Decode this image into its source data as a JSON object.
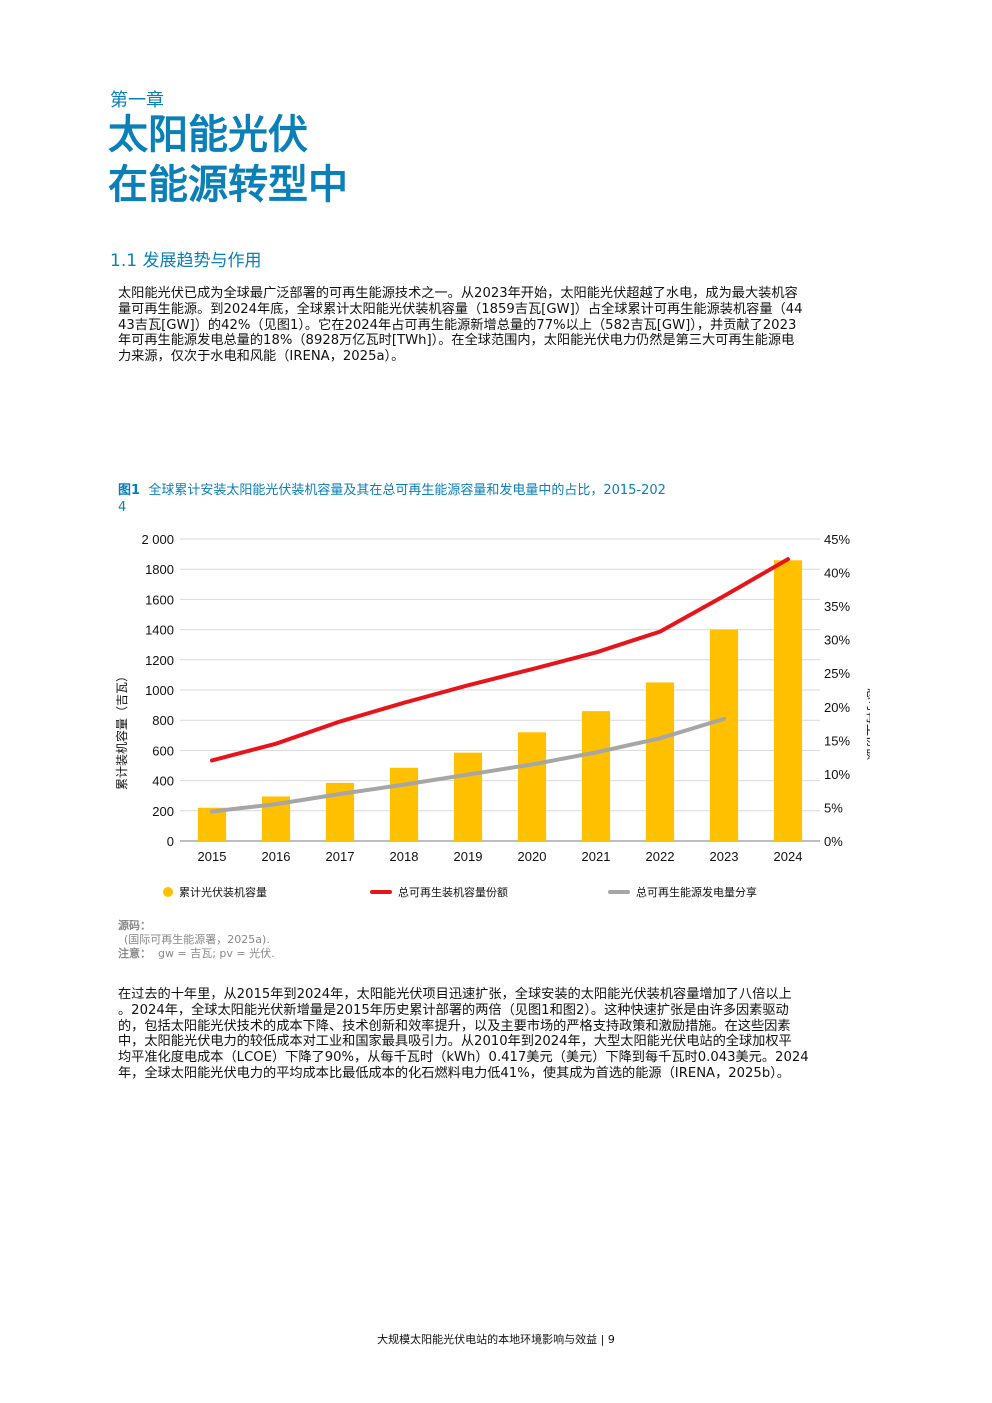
{
  "header": {
    "chapter": "第一章",
    "title_line1": "太阳能光伏",
    "title_line2": "在能源转型中"
  },
  "section_title": "1.1 发展趋势与作用",
  "paragraph1": [
    "太阳能光伏已成为全球最广泛部署的可再生能源技术之一。从2023年开始，太阳能光伏超越了水电，成为最大装机容",
    "量可再生能源。到2024年底，全球累计太阳能光伏装机容量（1859吉瓦[GW]）占全球累计可再生能源装机容量（44",
    "43吉瓦[GW]）的42%（见图1）。它在2024年占可再生能源新增总量的77%以上（582吉瓦[GW]），并贡献了2023",
    "年可再生能源发电总量的18%（8928万亿瓦时[TWh]）。在全球范围内，太阳能光伏电力仍然是第三大可再生能源电",
    "力来源，仅次于水电和风能（IRENA，2025a）。"
  ],
  "figure": {
    "label": "图1",
    "caption_line1": "全球累计安装太阳能光伏装机容量及其在总可再生能源容量和发电量中的占比，2015-202",
    "caption_line2": "4"
  },
  "chart_data": {
    "type": "bar",
    "categories": [
      "2015",
      "2016",
      "2017",
      "2018",
      "2019",
      "2020",
      "2021",
      "2022",
      "2023",
      "2024"
    ],
    "series": [
      {
        "name": "累计光伏装机容量",
        "type": "bar",
        "axis": "left",
        "color": "#ffc000",
        "values": [
          220,
          295,
          385,
          485,
          585,
          720,
          860,
          1050,
          1400,
          1859
        ]
      },
      {
        "name": "总可再生装机容量份额",
        "type": "line",
        "axis": "right",
        "color": "#e8141b",
        "values": [
          12,
          14.5,
          17.8,
          20.6,
          23.2,
          25.6,
          28.1,
          31.2,
          36.5,
          42
        ]
      },
      {
        "name": "总可再生能源发电量分享",
        "type": "line",
        "axis": "right",
        "color": "#a6a6a6",
        "values": [
          4.4,
          5.5,
          7.0,
          8.4,
          9.9,
          11.4,
          13.2,
          15.3,
          18.2,
          null
        ]
      }
    ],
    "ylabel_left": "累计装机容量（吉瓦）",
    "ylabel_right": "总可再生份额",
    "ylim_left": [
      0,
      2000
    ],
    "ylim_right": [
      0,
      45
    ],
    "yticks_left": [
      "0",
      "200",
      "400",
      "600",
      "800",
      "1000",
      "1200",
      "1400",
      "1600",
      "1800",
      "2 000"
    ],
    "yticks_right": [
      "0%",
      "5%",
      "10%",
      "15%",
      "20%",
      "25%",
      "30%",
      "35%",
      "40%",
      "45%"
    ],
    "grid": true,
    "legend_position": "bottom"
  },
  "notes": {
    "source_label": "源码：",
    "source_text": "(国际可再生能源署，2025a).",
    "note_label": "注意：",
    "note_text": "gw = 吉瓦; pv = 光伏."
  },
  "paragraph2": [
    "在过去的十年里，从2015年到2024年，太阳能光伏项目迅速扩张，全球安装的太阳能光伏装机容量增加了八倍以上",
    "。2024年，全球太阳能光伏新增量是2015年历史累计部署的两倍（见图1和图2）。这种快速扩张是由许多因素驱动",
    "的，包括太阳能光伏技术的成本下降、技术创新和效率提升，以及主要市场的严格支持政策和激励措施。在这些因素",
    "中，太阳能光伏电力的较低成本对工业和国家最具吸引力。从2010年到2024年，大型太阳能光伏电站的全球加权平",
    "均平准化度电成本（LCOE）下降了90%，从每千瓦时（kWh）0.417美元（美元）下降到每千瓦时0.043美元。2024",
    "年，全球太阳能光伏电力的平均成本比最低成本的化石燃料电力低41%，使其成为首选的能源（IRENA，2025b）。"
  ],
  "footer": "大规模太阳能光伏电站的本地环境影响与效益 | 9"
}
